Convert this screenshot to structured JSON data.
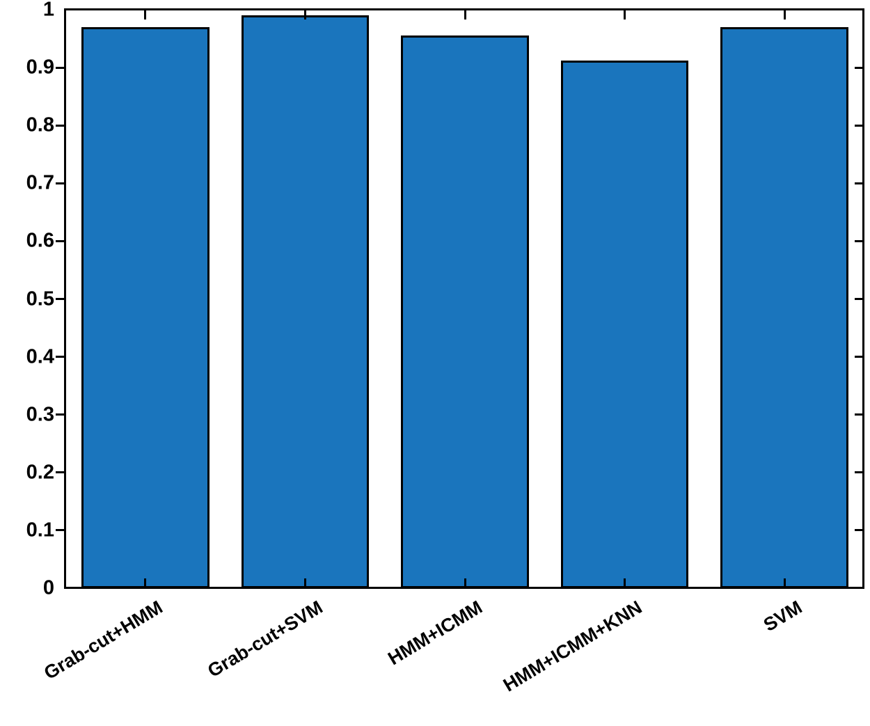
{
  "figure": {
    "background_color": "#ffffff",
    "axis_color": "#000000"
  },
  "chart_data": {
    "type": "bar",
    "title": "",
    "xlabel": "",
    "ylabel": "",
    "categories": [
      "Grab-cut+HMM",
      "Grab-cut+SVM",
      "HMM+ICMM",
      "HMM+ICMM+KNN",
      "SVM"
    ],
    "values": [
      0.97,
      0.99,
      0.956,
      0.912,
      0.97
    ],
    "ylim": [
      0,
      1
    ],
    "yticks": [
      0,
      0.1,
      0.2,
      0.3,
      0.4,
      0.5,
      0.6,
      0.7,
      0.8,
      0.9,
      1
    ],
    "ytick_labels": [
      "0",
      "0.1",
      "0.2",
      "0.3",
      "0.4",
      "0.5",
      "0.6",
      "0.7",
      "0.8",
      "0.9",
      "1"
    ],
    "bar_color": "#1a75bd",
    "bar_edge_color": "#000000",
    "grid": false,
    "legend": "none",
    "bar_width_ratio": 0.8,
    "xtick_label_rotation_deg": 31
  }
}
